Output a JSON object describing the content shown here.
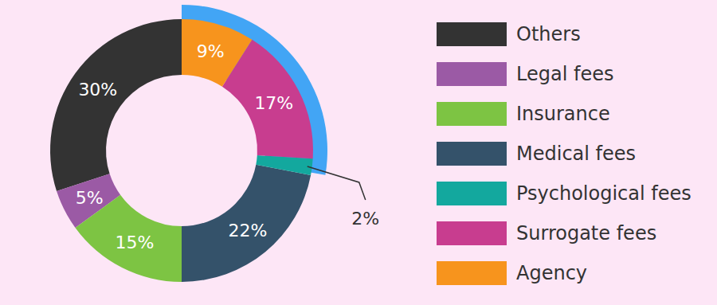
{
  "chart_data": {
    "type": "donut",
    "categories": [
      "Others",
      "Legal fees",
      "Insurance",
      "Medical fees",
      "Psychological fees",
      "Surrogate fees",
      "Agency"
    ],
    "values": [
      30,
      5,
      15,
      22,
      2,
      17,
      9
    ],
    "value_labels": [
      "30%",
      "5%",
      "15%",
      "22%",
      "2%",
      "17%",
      "9%"
    ],
    "colors": [
      "#333333",
      "#9b5aa5",
      "#7dc443",
      "#34526a",
      "#13a89e",
      "#c83d8f",
      "#f7941d"
    ],
    "data_labels": true,
    "legend": "right"
  }
}
